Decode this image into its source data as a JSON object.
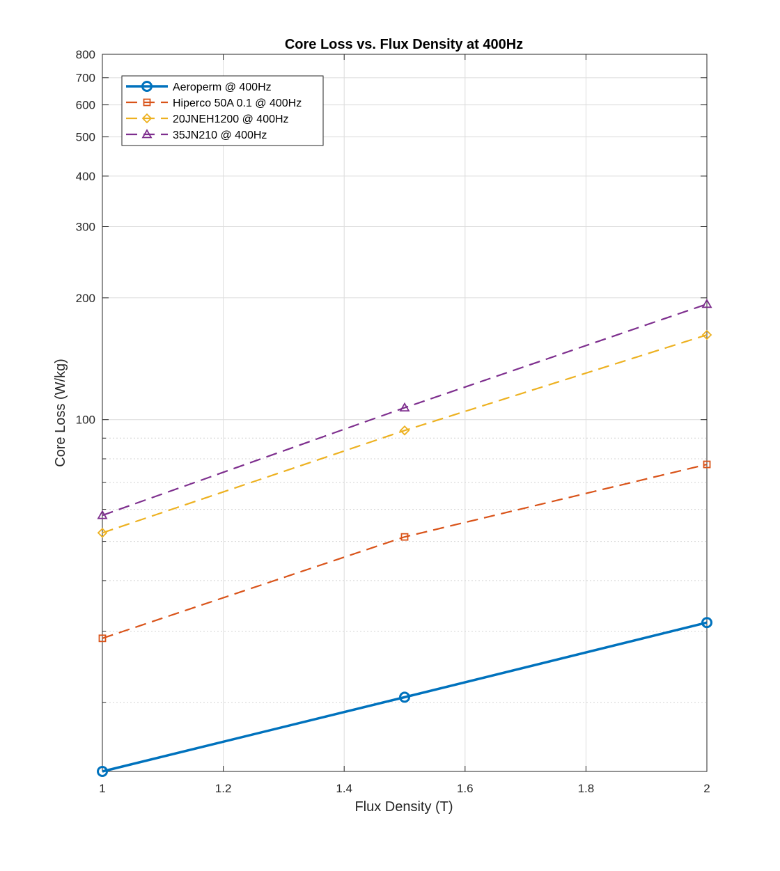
{
  "chart_data": {
    "type": "line",
    "title": "Core Loss vs. Flux Density at 400Hz",
    "xlabel": "Flux Density (T)",
    "ylabel": "Core Loss (W/kg)",
    "x": [
      1,
      1.5,
      2
    ],
    "xlim": [
      1,
      2
    ],
    "ylim": [
      13.5,
      800
    ],
    "yscale": "log",
    "grid": true,
    "legend_position": "top-left",
    "xticks": [
      1,
      1.2,
      1.4,
      1.6,
      1.8,
      2
    ],
    "xtick_labels": [
      "1",
      "1.2",
      "1.4",
      "1.6",
      "1.8",
      "2"
    ],
    "yticks": [
      100,
      200,
      300,
      400,
      500,
      600,
      700,
      800
    ],
    "ytick_labels": [
      "100",
      "200",
      "300",
      "400",
      "500",
      "600",
      "700",
      "800"
    ],
    "series": [
      {
        "name": "Aeroperm @ 400Hz",
        "values": [
          13.5,
          20.6,
          31.5
        ],
        "color": "#0072BD",
        "marker": "circle",
        "dash": "solid",
        "width": 3.5
      },
      {
        "name": "Hiperco 50A 0.1 @ 400Hz",
        "values": [
          28.8,
          51.3,
          77.5
        ],
        "color": "#D95319",
        "marker": "square",
        "dash": "dashed",
        "width": 2.2
      },
      {
        "name": "20JNEH1200 @ 400Hz",
        "values": [
          52.5,
          94,
          162
        ],
        "color": "#EDB120",
        "marker": "diamond",
        "dash": "dashed",
        "width": 2.2
      },
      {
        "name": "35JN210 @ 400Hz",
        "values": [
          58,
          107,
          193
        ],
        "color": "#7E2F8E",
        "marker": "triangle",
        "dash": "dashed",
        "width": 2.2
      }
    ]
  }
}
